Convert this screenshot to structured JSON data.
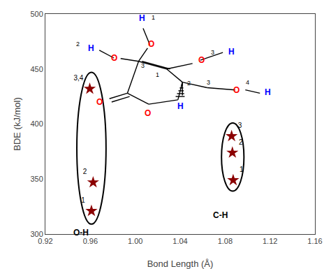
{
  "chart_data": {
    "type": "scatter",
    "xlabel": "Bond Length (Å)",
    "ylabel": "BDE (kJ/mol)",
    "xlim": [
      0.92,
      1.16
    ],
    "ylim": [
      300,
      500
    ],
    "xticks": [
      0.92,
      0.96,
      {
        "value": 1.0,
        "label": "1.00"
      },
      1.04,
      1.08,
      1.12,
      1.16
    ],
    "yticks": [
      300,
      350,
      400,
      450,
      500
    ],
    "grid": false,
    "series": [
      {
        "color": "#8B0000",
        "marker": "star",
        "x": [
          0.961,
          0.9625,
          0.9595
        ],
        "y": [
          321,
          347,
          432
        ],
        "labels": [
          "1",
          "2",
          "3,4"
        ],
        "group_label": {
          "text": "O-H",
          "x": 0.952,
          "y": 307,
          "color": "black"
        },
        "ellipse": {
          "cx": 0.961,
          "cy": 378,
          "w": 0.026,
          "h": 138
        }
      },
      {
        "color": "#8B0000",
        "marker": "star",
        "x": [
          1.0872,
          1.0865,
          1.0858
        ],
        "y": [
          349,
          374,
          389
        ],
        "labels": [
          "1",
          "2",
          "3"
        ],
        "group_label": {
          "text": "C-H",
          "x": 1.076,
          "y": 323,
          "color": "black"
        },
        "ellipse": {
          "cx": 1.0868,
          "cy": 370,
          "w": 0.02,
          "h": 62
        }
      }
    ],
    "molecule": {
      "bonds": [
        [
          1.003,
          457,
          1.028,
          450
        ],
        [
          1.028,
          450,
          1.042,
          438
        ],
        [
          1.042,
          438,
          1.038,
          422
        ],
        [
          1.038,
          422,
          1.012,
          418
        ],
        [
          1.012,
          418,
          0.993,
          428
        ],
        [
          0.993,
          428,
          1.003,
          457
        ],
        [
          1.006,
          457.016,
          1.031,
          450.016
        ],
        [
          0.993,
          428,
          0.977,
          423
        ],
        [
          0.995,
          425,
          0.979,
          420
        ],
        [
          1.003,
          457,
          1.011,
          469
        ],
        [
          1.013,
          472,
          1.007,
          487
        ],
        [
          1.003,
          457,
          0.987,
          459.5
        ],
        [
          0.981,
          460,
          0.968,
          467
        ],
        [
          1.028,
          450,
          1.051,
          455
        ],
        [
          1.058,
          458,
          1.078,
          465
        ],
        [
          1.042,
          438,
          1.042,
          426
        ],
        [
          1.042,
          438,
          1.042,
          438
        ],
        [
          1.0408,
          435.4,
          1.0424,
          435.4
        ],
        [
          1.0396,
          432.8,
          1.0428,
          432.8
        ],
        [
          1.0384,
          430.2,
          1.0432,
          430.2
        ],
        [
          1.0372,
          427.6,
          1.0436,
          427.6
        ],
        [
          1.036,
          425,
          1.044,
          425
        ],
        [
          1.042,
          438,
          1.064,
          433
        ],
        [
          1.064,
          433,
          1.089,
          431
        ],
        [
          1.098,
          431,
          1.111,
          428
        ]
      ],
      "atoms": [
        {
          "text": "O",
          "x": 0.968,
          "y": 420,
          "color": "red"
        },
        {
          "text": "O",
          "x": 1.011,
          "y": 410,
          "color": "red"
        },
        {
          "text": "O",
          "x": 1.014,
          "y": 473,
          "color": "red"
        },
        {
          "text": "H",
          "x": 1.006,
          "y": 496,
          "color": "blue"
        },
        {
          "text": "O",
          "x": 0.981,
          "y": 460,
          "color": "red"
        },
        {
          "text": "H",
          "x": 0.961,
          "y": 469,
          "color": "blue"
        },
        {
          "text": "O",
          "x": 1.059,
          "y": 458,
          "color": "red"
        },
        {
          "text": "H",
          "x": 1.086,
          "y": 466,
          "color": "blue"
        },
        {
          "text": "H",
          "x": 1.04,
          "y": 416,
          "color": "blue"
        },
        {
          "text": "O",
          "x": 1.09,
          "y": 431,
          "color": "red"
        },
        {
          "text": "H",
          "x": 1.118,
          "y": 429,
          "color": "blue"
        }
      ],
      "locants": [
        {
          "text": "1",
          "x": 1.016,
          "y": 497
        },
        {
          "text": "2",
          "x": 0.949,
          "y": 473
        },
        {
          "text": "3",
          "x": 1.007,
          "y": 453
        },
        {
          "text": "1",
          "x": 1.02,
          "y": 445
        },
        {
          "text": "3",
          "x": 1.069,
          "y": 465
        },
        {
          "text": "2",
          "x": 1.048,
          "y": 437
        },
        {
          "text": "3",
          "x": 1.065,
          "y": 438
        },
        {
          "text": "4",
          "x": 1.1,
          "y": 438
        }
      ]
    }
  }
}
